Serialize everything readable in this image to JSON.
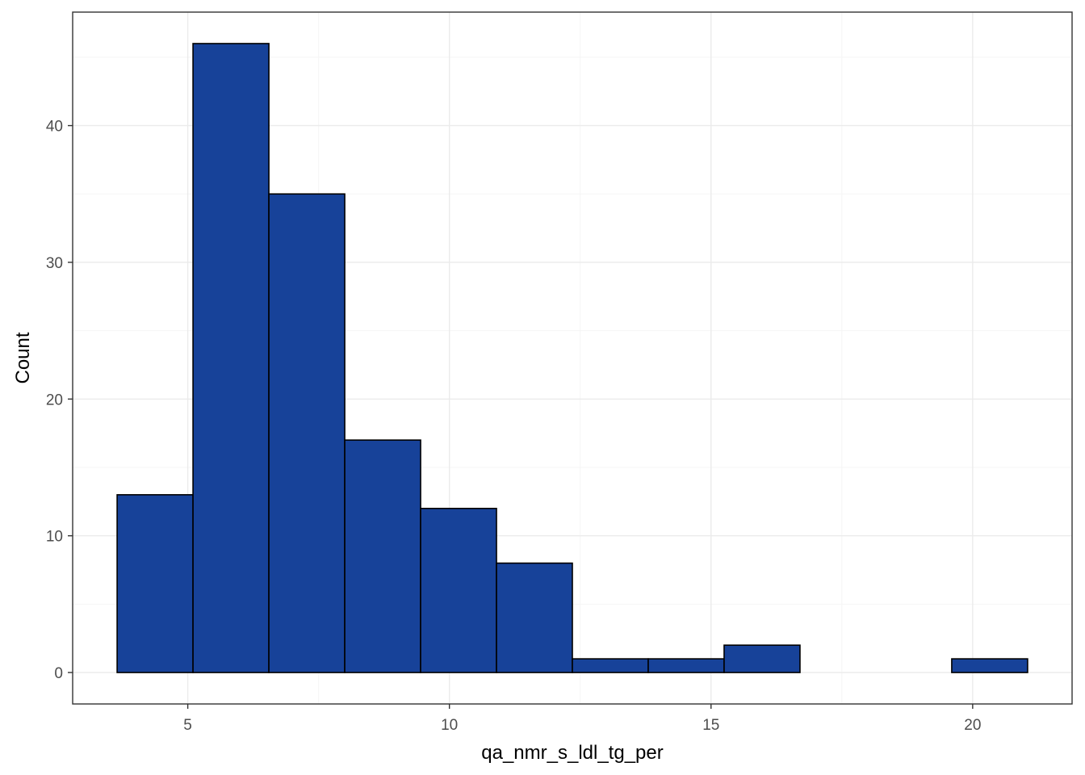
{
  "chart_data": {
    "type": "bar",
    "subtype": "histogram",
    "xlabel": "qa_nmr_s_ldl_tg_per",
    "ylabel": "Count",
    "xlim": [
      2.8,
      21.9
    ],
    "ylim": [
      -2.3,
      48.3
    ],
    "x_ticks": [
      5,
      10,
      15,
      20
    ],
    "y_ticks": [
      0,
      10,
      20,
      30,
      40
    ],
    "bins": [
      {
        "x0": 3.65,
        "x1": 5.1,
        "count": 13
      },
      {
        "x0": 5.1,
        "x1": 6.55,
        "count": 46
      },
      {
        "x0": 6.55,
        "x1": 8.0,
        "count": 35
      },
      {
        "x0": 8.0,
        "x1": 9.45,
        "count": 17
      },
      {
        "x0": 9.45,
        "x1": 10.9,
        "count": 12
      },
      {
        "x0": 10.9,
        "x1": 12.35,
        "count": 8
      },
      {
        "x0": 12.35,
        "x1": 13.8,
        "count": 1
      },
      {
        "x0": 13.8,
        "x1": 15.25,
        "count": 1
      },
      {
        "x0": 15.25,
        "x1": 16.7,
        "count": 2
      },
      {
        "x0": 16.7,
        "x1": 18.15,
        "count": 0
      },
      {
        "x0": 18.15,
        "x1": 19.6,
        "count": 0
      },
      {
        "x0": 19.6,
        "x1": 21.05,
        "count": 1
      }
    ],
    "grid": true,
    "theme": "bw",
    "colors": {
      "bar_fill": "#174299",
      "bar_outline": "#000000",
      "grid_major": "#ebebeb",
      "grid_minor": "#f5f5f5",
      "panel_border": "#333333",
      "tick_text": "#4d4d4d"
    }
  }
}
